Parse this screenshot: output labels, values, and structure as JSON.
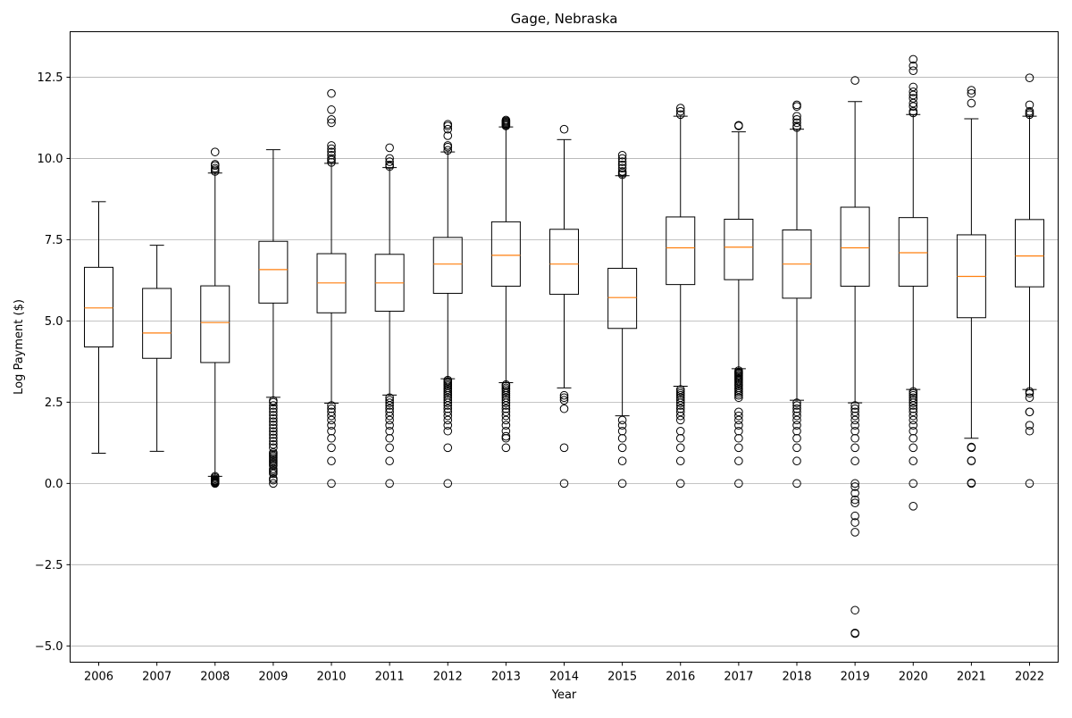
{
  "chart_data": {
    "type": "box",
    "title": "Gage, Nebraska",
    "xlabel": "Year",
    "ylabel": "Log Payment ($)",
    "ylim": [
      -5.5,
      13.9
    ],
    "y_ticks": [
      -5.0,
      -2.5,
      0.0,
      2.5,
      5.0,
      7.5,
      10.0,
      12.5
    ],
    "y_tick_labels": [
      "−5.0",
      "−2.5",
      "0.0",
      "2.5",
      "5.0",
      "7.5",
      "10.0",
      "12.5"
    ],
    "grid": "horizontal",
    "colors": {
      "box": "#000000",
      "median": "#ff7f0e",
      "flier": "#000000",
      "grid": "#b0b0b0"
    },
    "categories": [
      "2006",
      "2007",
      "2008",
      "2009",
      "2010",
      "2011",
      "2012",
      "2013",
      "2014",
      "2015",
      "2016",
      "2017",
      "2018",
      "2019",
      "2020",
      "2021",
      "2022"
    ],
    "boxes": [
      {
        "whislo": 0.93,
        "q1": 4.2,
        "med": 5.4,
        "q3": 6.65,
        "whishi": 8.67,
        "fliers": []
      },
      {
        "whislo": 0.99,
        "q1": 3.85,
        "med": 4.63,
        "q3": 6.0,
        "whishi": 7.33,
        "fliers": []
      },
      {
        "whislo": 0.22,
        "q1": 3.72,
        "med": 4.95,
        "q3": 6.08,
        "whishi": 9.55,
        "fliers": [
          0.0,
          0.02,
          0.04,
          0.06,
          0.08,
          0.1,
          0.14,
          0.18,
          0.22,
          9.6,
          9.65,
          9.7,
          9.78,
          9.82,
          10.2
        ]
      },
      {
        "whislo": 2.65,
        "q1": 5.55,
        "med": 6.58,
        "q3": 7.45,
        "whishi": 10.27,
        "fliers": [
          0.0,
          0.1,
          0.15,
          0.3,
          0.35,
          0.4,
          0.45,
          0.55,
          0.6,
          0.65,
          0.7,
          0.75,
          0.8,
          0.85,
          0.9,
          0.95,
          1.1,
          1.2,
          1.3,
          1.4,
          1.5,
          1.6,
          1.7,
          1.8,
          1.9,
          2.0,
          2.1,
          2.2,
          2.3,
          2.4,
          2.5,
          2.55
        ]
      },
      {
        "whislo": 2.47,
        "q1": 5.25,
        "med": 6.17,
        "q3": 7.07,
        "whishi": 9.85,
        "fliers": [
          0.0,
          0.69,
          1.1,
          1.39,
          1.61,
          1.79,
          1.95,
          2.08,
          2.2,
          2.3,
          2.4,
          9.88,
          9.95,
          10.0,
          10.1,
          10.2,
          10.3,
          10.4,
          11.1,
          11.2,
          11.5,
          12.0
        ]
      },
      {
        "whislo": 2.72,
        "q1": 5.3,
        "med": 6.17,
        "q3": 7.05,
        "whishi": 9.72,
        "fliers": [
          0.0,
          0.69,
          1.1,
          1.39,
          1.61,
          1.79,
          1.95,
          2.08,
          2.2,
          2.3,
          2.4,
          2.48,
          2.56,
          2.64,
          9.75,
          9.8,
          9.9,
          10.0,
          10.33
        ]
      },
      {
        "whislo": 3.22,
        "q1": 5.85,
        "med": 6.75,
        "q3": 7.57,
        "whishi": 10.2,
        "fliers": [
          0.0,
          1.1,
          1.61,
          1.79,
          1.95,
          2.08,
          2.2,
          2.3,
          2.4,
          2.48,
          2.56,
          2.64,
          2.71,
          2.77,
          2.83,
          2.89,
          2.94,
          3.0,
          3.04,
          3.09,
          3.14,
          3.18,
          10.25,
          10.35,
          10.4,
          10.7,
          10.9,
          11.0,
          11.05
        ]
      },
      {
        "whislo": 3.1,
        "q1": 6.07,
        "med": 7.02,
        "q3": 8.05,
        "whishi": 10.97,
        "fliers": [
          1.1,
          1.39,
          1.45,
          1.61,
          1.79,
          1.95,
          2.08,
          2.2,
          2.3,
          2.4,
          2.48,
          2.56,
          2.64,
          2.71,
          2.77,
          2.83,
          2.89,
          2.94,
          3.0,
          3.04,
          11.0,
          11.03,
          11.06,
          11.09,
          11.12,
          11.15,
          11.18
        ]
      },
      {
        "whislo": 2.94,
        "q1": 5.82,
        "med": 6.75,
        "q3": 7.82,
        "whishi": 10.58,
        "fliers": [
          0.0,
          1.1,
          2.3,
          2.56,
          2.64,
          2.71,
          10.9
        ]
      },
      {
        "whislo": 2.08,
        "q1": 4.77,
        "med": 5.72,
        "q3": 6.62,
        "whishi": 9.47,
        "fliers": [
          0.0,
          0.69,
          1.1,
          1.39,
          1.61,
          1.79,
          1.95,
          9.5,
          9.55,
          9.6,
          9.7,
          9.8,
          9.9,
          10.0,
          10.1
        ]
      },
      {
        "whislo": 2.99,
        "q1": 6.12,
        "med": 7.25,
        "q3": 8.2,
        "whishi": 11.3,
        "fliers": [
          0.0,
          0.69,
          1.1,
          1.39,
          1.61,
          1.95,
          2.08,
          2.2,
          2.3,
          2.4,
          2.48,
          2.56,
          2.64,
          2.71,
          2.77,
          2.83,
          2.89,
          11.35,
          11.45,
          11.55
        ]
      },
      {
        "whislo": 3.53,
        "q1": 6.27,
        "med": 7.27,
        "q3": 8.13,
        "whishi": 10.82,
        "fliers": [
          0.0,
          0.69,
          1.1,
          1.39,
          1.61,
          1.79,
          1.95,
          2.08,
          2.2,
          2.64,
          2.71,
          2.77,
          2.83,
          2.89,
          2.94,
          3.0,
          3.04,
          3.09,
          3.14,
          3.18,
          3.22,
          3.26,
          3.3,
          3.33,
          3.37,
          3.4,
          3.43,
          3.47,
          11.0,
          11.02
        ]
      },
      {
        "whislo": 2.56,
        "q1": 5.7,
        "med": 6.75,
        "q3": 7.8,
        "whishi": 10.9,
        "fliers": [
          0.0,
          0.69,
          1.1,
          1.39,
          1.61,
          1.79,
          1.95,
          2.08,
          2.2,
          2.3,
          2.4,
          2.48,
          10.95,
          11.0,
          11.1,
          11.2,
          11.3,
          11.6,
          11.65
        ]
      },
      {
        "whislo": 2.48,
        "q1": 6.07,
        "med": 7.25,
        "q3": 8.5,
        "whishi": 11.75,
        "fliers": [
          -4.6,
          -4.62,
          -3.9,
          -1.5,
          -1.2,
          -1.0,
          -0.6,
          -0.5,
          -0.3,
          -0.1,
          0.0,
          0.69,
          1.1,
          1.39,
          1.61,
          1.79,
          1.95,
          2.08,
          2.2,
          2.3,
          2.4,
          12.4
        ]
      },
      {
        "whislo": 2.89,
        "q1": 6.07,
        "med": 7.1,
        "q3": 8.18,
        "whishi": 11.35,
        "fliers": [
          -0.7,
          0.0,
          0.69,
          1.1,
          1.39,
          1.61,
          1.79,
          1.95,
          2.08,
          2.2,
          2.3,
          2.4,
          2.48,
          2.56,
          2.64,
          2.71,
          2.77,
          2.83,
          11.4,
          11.45,
          11.6,
          11.7,
          11.85,
          11.95,
          12.05,
          12.2,
          12.7,
          12.85,
          13.05
        ]
      },
      {
        "whislo": 1.39,
        "q1": 5.1,
        "med": 6.37,
        "q3": 7.65,
        "whishi": 11.22,
        "fliers": [
          0.0,
          0.02,
          0.69,
          0.7,
          1.1,
          1.12,
          11.7,
          12.0,
          12.1
        ]
      },
      {
        "whislo": 2.89,
        "q1": 6.05,
        "med": 7.0,
        "q3": 8.12,
        "whishi": 11.3,
        "fliers": [
          0.0,
          1.61,
          1.79,
          2.2,
          2.2,
          2.64,
          2.77,
          2.83,
          11.35,
          11.4,
          11.45,
          11.65,
          12.48
        ]
      }
    ]
  }
}
